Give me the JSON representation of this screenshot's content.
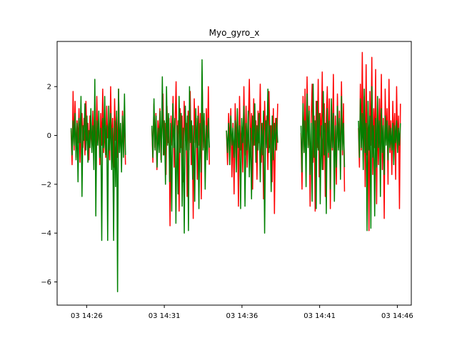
{
  "chart_data": {
    "type": "line",
    "title": "Myo_gyro_x",
    "xlabel": "",
    "ylabel": "",
    "x_unit": "minutes past 14:20 on day 03",
    "xlim": [
      4.1,
      26.9
    ],
    "ylim": [
      -6.95,
      3.85
    ],
    "yticks": [
      -6,
      -4,
      -2,
      0,
      2
    ],
    "xticks": [
      {
        "value": 6,
        "label": "03 14:26"
      },
      {
        "value": 11,
        "label": "03 14:31"
      },
      {
        "value": 16,
        "label": "03 14:36"
      },
      {
        "value": 21,
        "label": "03 14:41"
      },
      {
        "value": 26,
        "label": "03 14:46"
      }
    ],
    "grid": false,
    "legend": "none",
    "series": [
      {
        "color": "#ff0000",
        "segments": [
          {
            "x_start": 5.0,
            "x_end": 8.5,
            "y": [
              0.2,
              -1.2,
              1.8,
              -0.6,
              1.4,
              -0.9,
              0.6,
              -0.3,
              1.1,
              -1.1,
              0.3,
              0.9,
              -0.5,
              0.7,
              -0.8,
              1.4,
              -0.2,
              0.5,
              -1.0,
              0.8,
              0.1,
              -0.6,
              1.0,
              -0.3,
              0.4,
              -0.9,
              1.6,
              -0.2,
              0.6,
              -1.2,
              0.9,
              -0.4,
              1.9,
              -0.7,
              0.3,
              -0.9,
              1.2,
              -0.1,
              0.5,
              -1.0,
              2.0,
              -0.5,
              0.7,
              -1.3,
              1.5,
              -0.2,
              0.8,
              -0.9,
              1.9,
              -0.4,
              0.3,
              -1.1,
              1.0,
              -0.3,
              0.6,
              -1.2
            ]
          },
          {
            "x_start": 10.2,
            "x_end": 13.9,
            "y": [
              0.3,
              -1.1,
              1.3,
              -0.5,
              0.9,
              -1.4,
              0.6,
              -0.2,
              1.1,
              -1.0,
              0.4,
              1.7,
              -0.8,
              0.5,
              -1.6,
              1.2,
              -0.3,
              0.7,
              -3.7,
              0.8,
              -0.4,
              1.6,
              -1.3,
              0.3,
              2.2,
              -0.9,
              0.6,
              -3.1,
              1.1,
              -0.5,
              0.8,
              -1.9,
              1.4,
              -0.2,
              0.5,
              -2.5,
              1.0,
              -0.6,
              1.8,
              -1.2,
              0.4,
              -3.4,
              1.5,
              -0.3,
              0.7,
              -1.8,
              1.2,
              -0.4,
              0.9,
              -2.6,
              1.9,
              -0.5,
              0.6,
              -1.4,
              1.1,
              -0.7,
              2.0,
              -1.2
            ]
          },
          {
            "x_start": 15.0,
            "x_end": 18.3,
            "y": [
              0.2,
              -1.2,
              0.9,
              -0.4,
              1.1,
              -1.7,
              0.5,
              -2.4,
              1.3,
              -0.3,
              0.7,
              -2.9,
              1.6,
              -0.6,
              0.4,
              -1.5,
              2.0,
              -0.8,
              1.2,
              -1.3,
              0.3,
              2.3,
              -0.7,
              0.9,
              -2.2,
              1.5,
              -0.4,
              0.6,
              -1.8,
              1.0,
              -0.3,
              2.1,
              -1.1,
              0.5,
              -2.6,
              1.4,
              -0.2,
              0.8,
              -1.4,
              1.8,
              -0.5,
              0.4,
              -1.9,
              1.1,
              -3.2,
              0.7,
              -0.6,
              1.3
            ]
          },
          {
            "x_start": 19.8,
            "x_end": 22.6,
            "y": [
              0.1,
              -2.2,
              1.6,
              -0.7,
              1.9,
              -1.3,
              2.4,
              -0.4,
              1.2,
              -2.9,
              0.6,
              2.1,
              -1.1,
              0.8,
              -3.1,
              1.4,
              -0.5,
              2.3,
              -1.7,
              0.9,
              -0.3,
              2.6,
              -1.4,
              1.3,
              -2.5,
              0.7,
              2.0,
              -0.9,
              1.5,
              -3.0,
              1.1,
              -0.6,
              2.5,
              -1.8,
              0.8,
              -2.0,
              1.7,
              -0.5,
              1.0,
              -1.5,
              2.2,
              -0.8,
              1.3,
              -2.3
            ]
          },
          {
            "x_start": 23.5,
            "x_end": 26.2,
            "y": [
              0.3,
              -1.3,
              2.1,
              -0.6,
              3.4,
              -1.0,
              1.6,
              -2.1,
              2.9,
              -0.8,
              0.5,
              -3.9,
              1.8,
              -0.4,
              3.2,
              -1.6,
              1.1,
              -0.5,
              2.7,
              -2.8,
              0.9,
              -1.2,
              1.5,
              -0.6,
              2.5,
              -1.4,
              0.7,
              -3.4,
              1.9,
              -0.3,
              1.1,
              -2.0,
              2.3,
              -0.7,
              0.6,
              -1.6,
              1.4,
              -0.4,
              0.9,
              -1.8,
              2.0,
              -0.5,
              0.8,
              -3.0,
              1.3
            ]
          }
        ]
      },
      {
        "color": "#008000",
        "segments": [
          {
            "x_start": 5.0,
            "x_end": 8.5,
            "y": [
              0.3,
              -0.8,
              0.6,
              -0.4,
              0.9,
              -1.0,
              0.5,
              -1.9,
              0.7,
              -0.3,
              1.6,
              -2.5,
              0.4,
              -0.2,
              1.3,
              -0.6,
              0.8,
              -1.1,
              0.2,
              -0.5,
              1.1,
              -0.7,
              0.4,
              -1.4,
              2.3,
              -3.3,
              0.6,
              -0.4,
              1.0,
              -0.9,
              0.3,
              -4.3,
              0.7,
              -0.5,
              1.6,
              -0.8,
              0.4,
              -4.3,
              1.2,
              -0.6,
              0.9,
              -1.4,
              0.3,
              -4.3,
              0.6,
              -2.1,
              1.0,
              -6.4,
              1.9,
              -0.7,
              0.5,
              -1.5,
              0.8,
              -0.9,
              1.7,
              -0.8
            ]
          },
          {
            "x_start": 10.2,
            "x_end": 13.9,
            "y": [
              0.4,
              -0.9,
              1.5,
              -0.6,
              0.8,
              -1.3,
              0.3,
              -0.7,
              1.0,
              -1.1,
              2.4,
              -0.8,
              0.6,
              -2.0,
              2.0,
              -0.4,
              0.9,
              -1.9,
              0.5,
              -3.1,
              1.3,
              -0.5,
              0.7,
              -3.6,
              0.4,
              -2.4,
              1.6,
              -0.7,
              0.9,
              -2.9,
              0.3,
              -4.0,
              1.2,
              -0.6,
              0.8,
              -3.9,
              2.0,
              -0.3,
              0.6,
              -1.8,
              0.4,
              -2.7,
              1.1,
              -0.5,
              0.8,
              -3.0,
              0.5,
              -1.5,
              3.1,
              -0.6,
              0.9,
              -2.2,
              0.4,
              -1.0,
              0.7,
              -0.5
            ]
          },
          {
            "x_start": 15.0,
            "x_end": 18.3,
            "y": [
              0.2,
              -0.7,
              0.5,
              -1.2,
              0.8,
              -0.4,
              0.3,
              -0.9,
              0.6,
              -1.5,
              1.1,
              -0.5,
              0.4,
              -3.0,
              0.7,
              -0.3,
              1.2,
              -2.9,
              0.5,
              -0.6,
              1.0,
              -1.7,
              0.3,
              -2.6,
              0.8,
              -0.4,
              1.3,
              -1.1,
              0.4,
              -0.6,
              0.9,
              -1.9,
              0.5,
              -0.8,
              1.0,
              -4.0,
              0.6,
              -0.5,
              1.9,
              -0.7,
              0.4,
              -2.3,
              0.8,
              -1.0,
              0.5,
              -0.6,
              0.7,
              -0.3
            ]
          },
          {
            "x_start": 19.8,
            "x_end": 22.6,
            "y": [
              0.4,
              -1.5,
              1.3,
              -0.7,
              0.6,
              -2.1,
              1.7,
              -0.5,
              1.0,
              -1.6,
              0.5,
              -2.7,
              2.1,
              -0.9,
              0.6,
              -3.0,
              1.4,
              -0.6,
              0.9,
              -2.8,
              0.4,
              -1.4,
              1.8,
              -0.8,
              0.5,
              -3.2,
              1.1,
              -0.7,
              0.6,
              -2.2,
              1.5,
              -0.5,
              0.9,
              -2.7,
              0.4,
              -1.3,
              1.2,
              -0.6,
              0.7,
              -1.8,
              1.6,
              -0.6,
              0.5,
              -1.3
            ]
          },
          {
            "x_start": 23.5,
            "x_end": 26.2,
            "y": [
              0.6,
              -0.9,
              1.5,
              -0.5,
              0.9,
              -1.4,
              1.9,
              -0.7,
              0.5,
              -3.9,
              1.4,
              -0.6,
              0.8,
              -3.8,
              2.0,
              -0.9,
              0.4,
              -3.3,
              0.7,
              -1.3,
              1.6,
              -0.5,
              0.6,
              -2.5,
              1.1,
              -0.7,
              0.4,
              -1.6,
              0.8,
              -0.4,
              0.6,
              -1.0,
              0.4,
              -0.5,
              0.3,
              -0.6,
              0.5,
              -1.2,
              0.4,
              -0.3,
              0.6,
              -0.7,
              0.3,
              -0.4,
              0.5
            ]
          }
        ]
      }
    ]
  }
}
